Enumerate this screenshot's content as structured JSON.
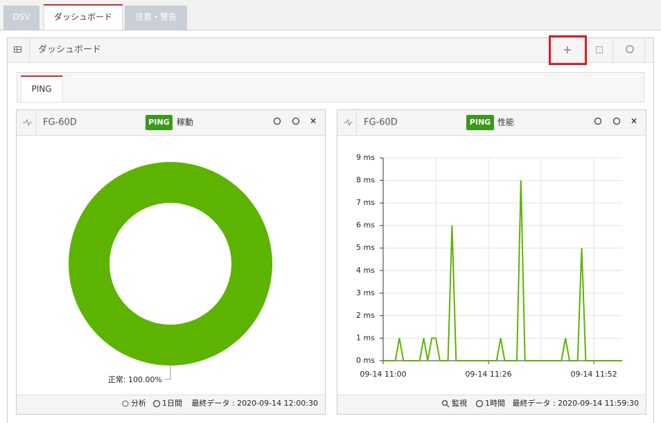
{
  "tabs": [
    "DSV",
    "ダッシュボード",
    "注意・警告"
  ],
  "panel": {
    "title": "ダッシュボード"
  },
  "subtabs": [
    "PING"
  ],
  "widgets": [
    {
      "device": "FG-60D",
      "badge": "PING",
      "kind": "稼動",
      "chart": {
        "type": "pie",
        "categories": [
          "正常"
        ],
        "values": [
          100
        ],
        "value_labels": [
          "正常: 100.00%"
        ],
        "color": "#5cb300"
      },
      "footer": [
        "分析",
        "1日間",
        "最終データ : 2020-09-14 12:00:30"
      ]
    },
    {
      "device": "FG-60D",
      "badge": "PING",
      "kind": "性能",
      "chart": {
        "type": "line",
        "color": "#5cb300",
        "grid": true,
        "xgrid_step": 13,
        "xlabel_step": 26,
        "x": [
          "09-14 11:00",
          "09-14 11:01",
          "09-14 11:02",
          "09-14 11:03",
          "09-14 11:04",
          "09-14 11:05",
          "09-14 11:06",
          "09-14 11:07",
          "09-14 11:08",
          "09-14 11:09",
          "09-14 11:10",
          "09-14 11:11",
          "09-14 11:12",
          "09-14 11:13",
          "09-14 11:14",
          "09-14 11:15",
          "09-14 11:16",
          "09-14 11:17",
          "09-14 11:18",
          "09-14 11:19",
          "09-14 11:20",
          "09-14 11:21",
          "09-14 11:22",
          "09-14 11:23",
          "09-14 11:24",
          "09-14 11:25",
          "09-14 11:26",
          "09-14 11:27",
          "09-14 11:28",
          "09-14 11:29",
          "09-14 11:30",
          "09-14 11:31",
          "09-14 11:32",
          "09-14 11:33",
          "09-14 11:34",
          "09-14 11:35",
          "09-14 11:36",
          "09-14 11:37",
          "09-14 11:38",
          "09-14 11:39",
          "09-14 11:40",
          "09-14 11:41",
          "09-14 11:42",
          "09-14 11:43",
          "09-14 11:44",
          "09-14 11:45",
          "09-14 11:46",
          "09-14 11:47",
          "09-14 11:48",
          "09-14 11:49",
          "09-14 11:50",
          "09-14 11:51",
          "09-14 11:52",
          "09-14 11:53",
          "09-14 11:54",
          "09-14 11:55",
          "09-14 11:56",
          "09-14 11:57",
          "09-14 11:58",
          "09-14 11:59"
        ],
        "values": [
          0,
          0,
          0,
          0,
          1,
          0,
          0,
          0,
          0,
          0,
          1,
          0,
          1,
          1,
          0,
          0,
          0,
          6,
          0,
          0,
          0,
          0,
          0,
          0,
          0,
          0,
          0,
          0,
          0,
          1,
          0,
          0,
          0,
          0,
          8,
          0,
          0,
          0,
          0,
          0,
          0,
          0,
          0,
          0,
          0,
          1,
          0,
          0,
          0,
          5,
          0,
          0,
          0,
          0,
          0,
          0,
          0,
          0,
          0,
          0
        ],
        "ylim": [
          0,
          9
        ],
        "yticks": [
          {
            "value": 0,
            "label": "0 ms"
          },
          {
            "value": 1,
            "label": "1 ms"
          },
          {
            "value": 2,
            "label": "2 ms"
          },
          {
            "value": 3,
            "label": "3 ms"
          },
          {
            "value": 4,
            "label": "4 ms"
          },
          {
            "value": 5,
            "label": "5 ms"
          },
          {
            "value": 6,
            "label": "6 ms"
          },
          {
            "value": 7,
            "label": "7 ms"
          },
          {
            "value": 8,
            "label": "8 ms"
          },
          {
            "value": 9,
            "label": "9 ms"
          }
        ]
      },
      "footer": [
        "監視",
        "1時間",
        "最終データ : 2020-09-14 11:59:30"
      ]
    }
  ]
}
